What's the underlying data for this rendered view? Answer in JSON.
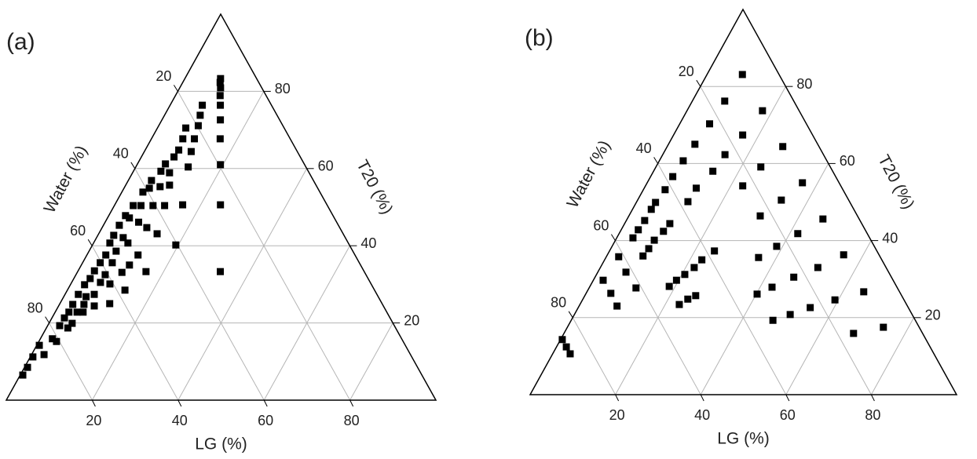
{
  "chart_data": [
    {
      "type": "ternary",
      "panel_label": "(a)",
      "lg_label": "LG (%)",
      "t20_label": "T20 (%)",
      "water_label": "Water (%)",
      "lim": [
        0,
        100
      ],
      "lg_ticks": [
        20,
        40,
        60,
        80
      ],
      "t20_ticks": [
        20,
        40,
        60,
        80
      ],
      "water_ticks": [
        20,
        40,
        60,
        80
      ],
      "grid": true,
      "series": [
        {
          "color": "#000000",
          "lg": [
            8.3,
            8.7,
            9.5,
            10.4,
            11.7,
            13.6,
            16.0,
            19.4,
            24.6,
            33.2,
            7.5,
            8.3,
            9.2,
            6.6,
            10.0,
            7.3,
            10.9,
            7.8,
            7.6,
            6.5,
            12.2,
            8.6,
            6.4,
            5.4,
            10.2,
            8.2,
            5.9,
            4.9,
            15.8,
            11.7,
            9.0,
            6.2,
            4.4,
            3.9,
            5.1,
            7.8,
            10.4,
            13.6,
            3.7,
            3.7,
            6.2,
            8.0,
            19.4,
            3.8,
            6.3,
            11.9,
            4.4,
            4.1,
            6.9,
            11.2,
            15.9,
            3.8,
            6.8,
            10.4,
            3.8,
            6.7,
            9.1,
            3.3,
            6.8,
            13.4,
            3.1,
            5.2,
            11.6,
            3.1,
            5.7,
            8.3,
            3.2,
            5.1,
            6.5,
            2.9,
            5.4,
            2.8,
            5.0,
            2.8,
            4.1,
            2.9,
            0.6,
            0.6,
            0.7,
            0.6
          ],
          "t20": [
            83.3,
            82.3,
            80.9,
            78.9,
            76.4,
            72.6,
            67.7,
            61.0,
            50.6,
            33.3,
            76.4,
            73.8,
            71.1,
            70.5,
            67.7,
            67.7,
            64.4,
            64.8,
            63.0,
            61.2,
            60.4,
            58.9,
            59.3,
            56.9,
            55.7,
            55.3,
            54.9,
            53.9,
            50.6,
            50.4,
            50.4,
            50.4,
            50.4,
            47.8,
            47.2,
            46.1,
            44.7,
            43.1,
            45.3,
            42.7,
            42.1,
            40.7,
            40.2,
            40.7,
            38.6,
            37.6,
            37.6,
            35.6,
            35.6,
            35.0,
            33.3,
            33.5,
            32.5,
            33.1,
            31.5,
            30.5,
            30.1,
            29.9,
            27.4,
            28.5,
            27.4,
            26.8,
            25.0,
            24.8,
            24.8,
            24.4,
            22.8,
            22.8,
            22.8,
            21.3,
            19.9,
            19.3,
            18.7,
            15.9,
            15.2,
            11.8,
            14.2,
            11.2,
            8.5,
            6.5
          ]
        }
      ]
    },
    {
      "type": "ternary",
      "panel_label": "(b)",
      "lg_label": "LG (%)",
      "t20_label": "T20 (%)",
      "water_label": "Water (%)",
      "lim": [
        0,
        100
      ],
      "lg_ticks": [
        20,
        40,
        60,
        80
      ],
      "t20_ticks": [
        20,
        40,
        60,
        80
      ],
      "water_ticks": [
        20,
        40,
        60,
        80
      ],
      "grid": true,
      "series": [
        {
          "color": "#000000",
          "lg": [
            8.3,
            7.6,
            17.7,
            7.0,
            16.2,
            6.2,
            27.1,
            14.6,
            5.6,
            24.6,
            13.9,
            5.2,
            36.4,
            22.8,
            12.2,
            5.1,
            33.7,
            12.0,
            4.5,
            4.4,
            30.8,
            45.9,
            4.3,
            10.6,
            10.1,
            41.9,
            4.0,
            3.8,
            9.1,
            38.6,
            24.6,
            8.9,
            55.4,
            35.8,
            8.5,
            22.8,
            2.9,
            51.0,
            22.0,
            6.6,
            20.7,
            46.6,
            19.5,
            2.3,
            18.6,
            42.8,
            11.0,
            64.9,
            40.2,
            5.8,
            26.0,
            24.6,
            59.2,
            23.3,
            8.9,
            54.4,
            50.6,
            47.3,
            74.1,
            67.9,
            0.4,
            2.3,
            4.1
          ],
          "t20": [
            83.1,
            76.2,
            73.7,
            70.3,
            67.4,
            65.0,
            64.4,
            62.3,
            60.7,
            59.1,
            58.0,
            56.6,
            55.0,
            54.2,
            53.6,
            53.2,
            50.5,
            50.1,
            49.9,
            48.1,
            46.4,
            45.6,
            45.2,
            44.4,
            42.4,
            41.8,
            42.8,
            40.7,
            40.1,
            38.5,
            37.3,
            37.9,
            36.3,
            35.6,
            36.0,
            35.0,
            35.8,
            33.0,
            33.0,
            31.8,
            31.2,
            30.5,
            29.7,
            29.7,
            28.1,
            27.9,
            27.7,
            26.7,
            26.1,
            26.3,
            25.7,
            24.8,
            24.6,
            23.4,
            23.0,
            22.6,
            20.8,
            19.3,
            17.5,
            15.9,
            14.3,
            12.4,
            10.6
          ]
        }
      ]
    }
  ]
}
